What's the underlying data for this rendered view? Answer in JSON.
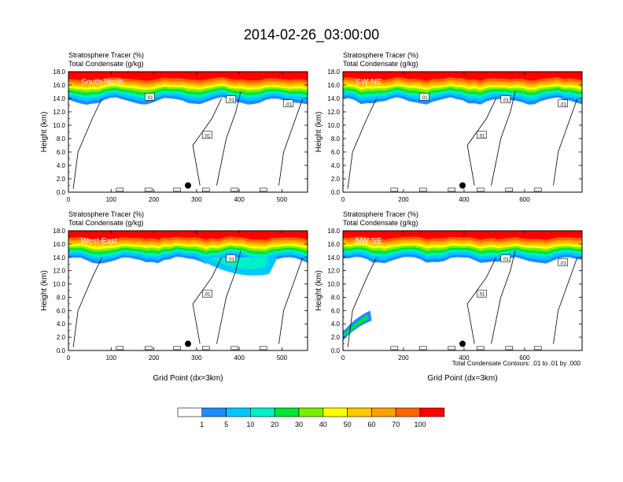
{
  "figure": {
    "title": "2014-02-26_03:00:00",
    "contour_note": "Total Condensate Contours: .01 to .01 by .000",
    "colorbar": {
      "labels": [
        "1",
        "5",
        "10",
        "20",
        "30",
        "40",
        "50",
        "60",
        "70",
        "100"
      ],
      "colors": [
        "#ffffff",
        "#1e8cff",
        "#00c8ff",
        "#00f0c8",
        "#00e632",
        "#78f000",
        "#ffff00",
        "#ffc800",
        "#ffa000",
        "#ff6400",
        "#ff0000"
      ]
    }
  },
  "chart_data": [
    {
      "type": "heatmap",
      "subtitle_1": "Stratosphere Tracer   (%)",
      "subtitle_2": "Total Condensate   (g/kg)",
      "panel_label": "South-North",
      "ylabel": "Height (km)",
      "xlabel": "",
      "xlim": [
        0,
        560
      ],
      "ylim": [
        0,
        18
      ],
      "xticks": [
        "0",
        "100",
        "200",
        "300",
        "400",
        "500"
      ],
      "yticks": [
        "0.0",
        "2.0",
        "4.0",
        "6.0",
        "8.0",
        "10.0",
        "12.0",
        "14.0",
        "16.0",
        "18.0"
      ],
      "marker_x": 280,
      "contour_labels": [
        ".01",
        ".01",
        ".01",
        ".01"
      ]
    },
    {
      "type": "heatmap",
      "subtitle_1": "Stratosphere Tracer   (%)",
      "subtitle_2": "Total Condensate   (g/kg)",
      "panel_label": "SW-NE",
      "ylabel": "Height (km)",
      "xlabel": "",
      "xlim": [
        0,
        790
      ],
      "ylim": [
        0,
        18
      ],
      "xticks": [
        "0",
        "200",
        "400",
        "600"
      ],
      "yticks": [
        "0.0",
        "2.0",
        "4.0",
        "6.0",
        "8.0",
        "10.0",
        "12.0",
        "14.0",
        "16.0",
        "18.0"
      ],
      "marker_x": 395,
      "contour_labels": [
        ".01",
        ".01",
        ".01",
        ".01"
      ]
    },
    {
      "type": "heatmap",
      "subtitle_1": "Stratosphere Tracer   (%)",
      "subtitle_2": "Total Condensate   (g/kg)",
      "panel_label": "West-East",
      "ylabel": "Height (km)",
      "xlabel": "Grid Point (dx=3km)",
      "xlim": [
        0,
        560
      ],
      "ylim": [
        0,
        18
      ],
      "xticks": [
        "0",
        "100",
        "200",
        "300",
        "400",
        "500"
      ],
      "yticks": [
        "0.0",
        "2.0",
        "4.0",
        "6.0",
        "8.0",
        "10.0",
        "12.0",
        "14.0",
        "16.0",
        "18.0"
      ],
      "marker_x": 280,
      "contour_labels": [
        ".01",
        ".01"
      ]
    },
    {
      "type": "heatmap",
      "subtitle_1": "Stratosphere Tracer   (%)",
      "subtitle_2": "Total Condensate   (g/kg)",
      "panel_label": "NW-SE",
      "ylabel": "Height (km)",
      "xlabel": "Grid Point (dx=3km)",
      "xlim": [
        0,
        790
      ],
      "ylim": [
        0,
        18
      ],
      "xticks": [
        "0",
        "200",
        "400",
        "600"
      ],
      "yticks": [
        "0.0",
        "2.0",
        "4.0",
        "6.0",
        "8.0",
        "10.0",
        "12.0",
        "14.0",
        "16.0",
        "18.0"
      ],
      "marker_x": 395,
      "contour_labels": [
        ".01",
        ".01",
        ".01"
      ]
    }
  ]
}
